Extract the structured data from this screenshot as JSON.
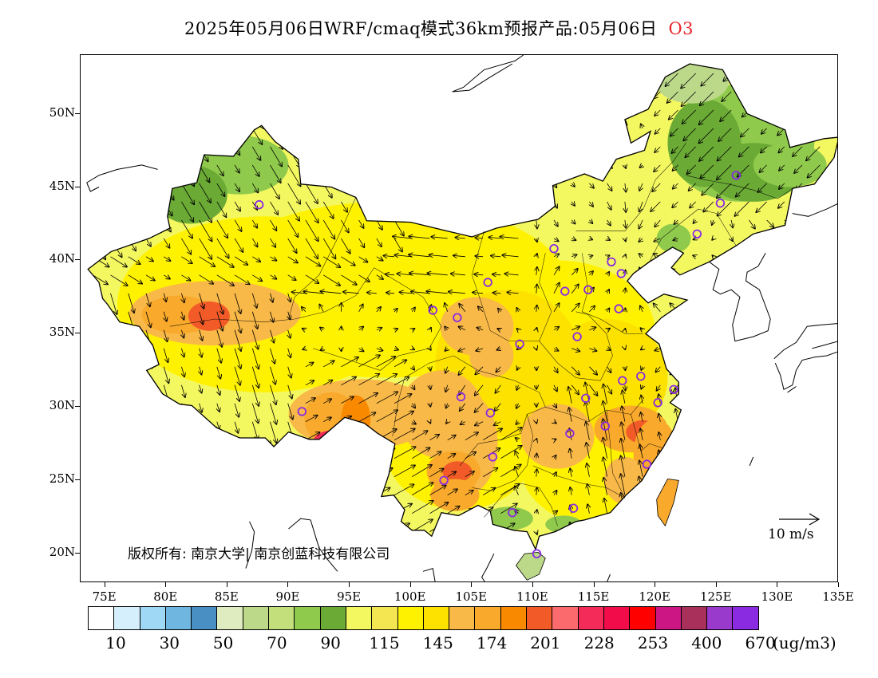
{
  "title": "2025年05月06日WRF/cmaq模式36km预报产品:05月06日",
  "species": "O3",
  "copyright": "版权所有: 南京大学| 南京创蓝科技有限公司",
  "wind_reference": {
    "label": "10 m/s",
    "speed": 10
  },
  "axes": {
    "lon_labels": [
      "75E",
      "80E",
      "85E",
      "90E",
      "95E",
      "100E",
      "105E",
      "110E",
      "115E",
      "120E",
      "125E",
      "130E",
      "135E"
    ],
    "lat_labels": [
      "20N",
      "25N",
      "30N",
      "35N",
      "40N",
      "45N",
      "50N"
    ],
    "lon_range": [
      73,
      135
    ],
    "lat_range": [
      18,
      54
    ]
  },
  "legend": {
    "colors": [
      "#ffffff",
      "#d6effc",
      "#9fd8f5",
      "#6fb6e0",
      "#4a8fc4",
      "#dfecc0",
      "#bcd98a",
      "#c3df7c",
      "#90ca4c",
      "#6aaa35",
      "#f4f860",
      "#f4e650",
      "#fff200",
      "#fde200",
      "#f9b948",
      "#f9a92b",
      "#f98a00",
      "#f25b28",
      "#fb6a6c",
      "#f42a58",
      "#f20c4a",
      "#fe0000",
      "#cc1683",
      "#a8305a",
      "#9a3acd",
      "#8a2be2"
    ],
    "labels": [
      "10",
      "30",
      "50",
      "70",
      "90",
      "115",
      "145",
      "174",
      "201",
      "228",
      "253",
      "400",
      "670"
    ],
    "unit": "(ug/m3)"
  },
  "monitoring_sites": [
    [
      87.6,
      43.8
    ],
    [
      91.1,
      29.7
    ],
    [
      101.8,
      36.6
    ],
    [
      103.8,
      36.1
    ],
    [
      104.1,
      30.7
    ],
    [
      106.3,
      38.5
    ],
    [
      106.5,
      29.6
    ],
    [
      106.7,
      26.6
    ],
    [
      102.7,
      25.0
    ],
    [
      108.3,
      22.8
    ],
    [
      110.3,
      20.0
    ],
    [
      108.9,
      34.3
    ],
    [
      111.7,
      40.8
    ],
    [
      112.6,
      37.9
    ],
    [
      113.3,
      23.1
    ],
    [
      113.0,
      28.2
    ],
    [
      114.3,
      30.6
    ],
    [
      113.6,
      34.8
    ],
    [
      114.5,
      38.0
    ],
    [
      116.4,
      39.9
    ],
    [
      117.2,
      39.1
    ],
    [
      117.0,
      36.7
    ],
    [
      117.3,
      31.8
    ],
    [
      118.8,
      32.1
    ],
    [
      120.2,
      30.3
    ],
    [
      121.5,
      31.2
    ],
    [
      119.3,
      26.1
    ],
    [
      115.9,
      28.7
    ],
    [
      123.4,
      41.8
    ],
    [
      125.3,
      43.9
    ],
    [
      126.6,
      45.8
    ]
  ],
  "map_colors": {
    "land_base": "#f4f860",
    "green_low": "#90ca4c",
    "green_dark": "#6aaa35",
    "green_pale": "#bcd98a",
    "yellow": "#fff200",
    "yellow_dark": "#fde200",
    "orange_light": "#f9b948",
    "orange": "#f9a92b",
    "orange_dark": "#f98a00",
    "red_orange": "#f25b28",
    "red": "#f42a58"
  }
}
